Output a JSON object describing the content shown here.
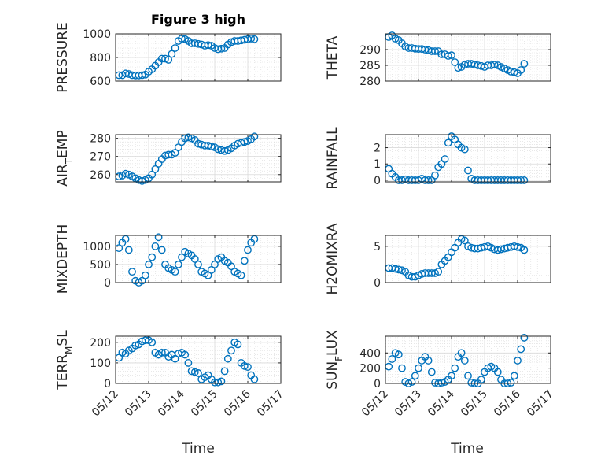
{
  "title": "Figure 3 high",
  "xlabel": "Time",
  "x_ticklabels": [
    "05/12",
    "05/13",
    "05/14",
    "05/15",
    "05/16",
    "05/17"
  ],
  "colors": {
    "marker": "#0072BD",
    "axes": "#262626",
    "grid": "#dadada"
  },
  "chart_data": [
    {
      "type": "scatter",
      "ylabel": "PRESSURE",
      "ylim": [
        600,
        1000
      ],
      "yticks": [
        600,
        800,
        1000
      ],
      "x": [
        0.1,
        0.2,
        0.3,
        0.4,
        0.5,
        0.6,
        0.7,
        0.8,
        0.9,
        1.0,
        1.1,
        1.2,
        1.3,
        1.4,
        1.5,
        1.6,
        1.7,
        1.8,
        1.9,
        2.0,
        2.1,
        2.2,
        2.3,
        2.4,
        2.5,
        2.6,
        2.7,
        2.8,
        2.9,
        3.0,
        3.1,
        3.2,
        3.3,
        3.4,
        3.5,
        3.6,
        3.7,
        3.8,
        3.9,
        4.0,
        4.1,
        4.2
      ],
      "y": [
        650,
        650,
        665,
        660,
        650,
        648,
        648,
        650,
        655,
        680,
        700,
        730,
        760,
        790,
        790,
        780,
        830,
        880,
        940,
        960,
        955,
        940,
        920,
        920,
        915,
        910,
        900,
        905,
        900,
        880,
        870,
        875,
        880,
        910,
        930,
        940,
        940,
        945,
        950,
        955,
        960,
        955
      ]
    },
    {
      "type": "scatter",
      "ylabel": "THETA",
      "ylim": [
        280,
        295
      ],
      "yticks": [
        280,
        285,
        290
      ],
      "x": [
        0.1,
        0.2,
        0.3,
        0.4,
        0.5,
        0.6,
        0.7,
        0.8,
        0.9,
        1.0,
        1.1,
        1.2,
        1.3,
        1.4,
        1.5,
        1.6,
        1.7,
        1.8,
        1.9,
        2.0,
        2.1,
        2.2,
        2.3,
        2.4,
        2.5,
        2.6,
        2.7,
        2.8,
        2.9,
        3.0,
        3.1,
        3.2,
        3.3,
        3.4,
        3.5,
        3.6,
        3.7,
        3.8,
        3.9,
        4.0,
        4.1,
        4.2
      ],
      "y": [
        294,
        294.5,
        293.5,
        293,
        292,
        291,
        290.5,
        290.5,
        290.3,
        290.2,
        290.2,
        290,
        289.8,
        289.5,
        289.5,
        289.5,
        288.5,
        288.5,
        288,
        288.2,
        286,
        284.2,
        284.5,
        285.2,
        285.5,
        285.5,
        285.2,
        285,
        284.8,
        284.5,
        285,
        285,
        285.2,
        285,
        284.5,
        284,
        283.5,
        283,
        282.8,
        282.5,
        283.5,
        285.5
      ]
    },
    {
      "type": "scatter",
      "ylabel": "AIR_TEMP",
      "ylim": [
        256,
        282
      ],
      "yticks": [
        260,
        270,
        280
      ],
      "x": [
        0.1,
        0.2,
        0.3,
        0.4,
        0.5,
        0.6,
        0.7,
        0.8,
        0.9,
        1.0,
        1.1,
        1.2,
        1.3,
        1.4,
        1.5,
        1.6,
        1.7,
        1.8,
        1.9,
        2.0,
        2.1,
        2.2,
        2.3,
        2.4,
        2.5,
        2.6,
        2.7,
        2.8,
        2.9,
        3.0,
        3.1,
        3.2,
        3.3,
        3.4,
        3.5,
        3.6,
        3.7,
        3.8,
        3.9,
        4.0,
        4.1,
        4.2
      ],
      "y": [
        259,
        259.5,
        260.5,
        260,
        259,
        258,
        257,
        256.5,
        257,
        258,
        260,
        263,
        266,
        268.5,
        270.5,
        271,
        271,
        272,
        275,
        278,
        280,
        280.5,
        280,
        279,
        277,
        276.5,
        276,
        276,
        275.5,
        275,
        274,
        273.5,
        273,
        273.5,
        274.5,
        276,
        277,
        277.5,
        278,
        278.5,
        279.5,
        281
      ]
    },
    {
      "type": "scatter",
      "ylabel": "RAINFALL",
      "ylim": [
        -0.1,
        2.8
      ],
      "yticks": [
        0,
        1,
        2
      ],
      "x": [
        0.1,
        0.2,
        0.3,
        0.4,
        0.5,
        0.6,
        0.7,
        0.8,
        0.9,
        1.0,
        1.1,
        1.2,
        1.3,
        1.4,
        1.5,
        1.6,
        1.7,
        1.8,
        1.9,
        2.0,
        2.1,
        2.2,
        2.3,
        2.4,
        2.5,
        2.6,
        2.7,
        2.8,
        2.9,
        3.0,
        3.1,
        3.2,
        3.3,
        3.4,
        3.5,
        3.6,
        3.7,
        3.8,
        3.9,
        4.0,
        4.1,
        4.2
      ],
      "y": [
        0.7,
        0.4,
        0.2,
        0,
        0,
        0.05,
        0,
        0,
        0,
        0,
        0.1,
        0,
        0,
        0,
        0.3,
        0.8,
        1.0,
        1.3,
        2.3,
        2.7,
        2.5,
        2.2,
        2.0,
        1.9,
        0.6,
        0.1,
        0,
        0,
        0,
        0,
        0,
        0,
        0,
        0,
        0,
        0,
        0,
        0,
        0,
        0,
        0,
        0
      ]
    },
    {
      "type": "scatter",
      "ylabel": "MIXDEPTH",
      "ylim": [
        0,
        1300
      ],
      "yticks": [
        0,
        500,
        1000
      ],
      "x": [
        0.1,
        0.2,
        0.3,
        0.4,
        0.5,
        0.6,
        0.7,
        0.8,
        0.9,
        1.0,
        1.1,
        1.2,
        1.3,
        1.4,
        1.5,
        1.6,
        1.7,
        1.8,
        1.9,
        2.0,
        2.1,
        2.2,
        2.3,
        2.4,
        2.5,
        2.6,
        2.7,
        2.8,
        2.9,
        3.0,
        3.1,
        3.2,
        3.3,
        3.4,
        3.5,
        3.6,
        3.7,
        3.8,
        3.9,
        4.0,
        4.1,
        4.2
      ],
      "y": [
        950,
        1100,
        1200,
        900,
        300,
        50,
        0,
        50,
        200,
        500,
        700,
        1000,
        1250,
        900,
        500,
        400,
        350,
        300,
        500,
        700,
        850,
        800,
        750,
        650,
        500,
        300,
        250,
        200,
        350,
        500,
        650,
        700,
        600,
        550,
        450,
        300,
        250,
        200,
        600,
        900,
        1100,
        1200
      ]
    },
    {
      "type": "scatter",
      "ylabel": "H2OMIXRA",
      "ylim": [
        0,
        6.5
      ],
      "yticks": [
        0,
        5
      ],
      "x": [
        0.1,
        0.2,
        0.3,
        0.4,
        0.5,
        0.6,
        0.7,
        0.8,
        0.9,
        1.0,
        1.1,
        1.2,
        1.3,
        1.4,
        1.5,
        1.6,
        1.7,
        1.8,
        1.9,
        2.0,
        2.1,
        2.2,
        2.3,
        2.4,
        2.5,
        2.6,
        2.7,
        2.8,
        2.9,
        3.0,
        3.1,
        3.2,
        3.3,
        3.4,
        3.5,
        3.6,
        3.7,
        3.8,
        3.9,
        4.0,
        4.1,
        4.2
      ],
      "y": [
        2,
        2,
        1.9,
        1.8,
        1.7,
        1.5,
        1,
        0.8,
        0.8,
        1.0,
        1.2,
        1.3,
        1.3,
        1.3,
        1.3,
        1.5,
        2.5,
        3.0,
        3.5,
        4.2,
        4.8,
        5.5,
        6.0,
        5.8,
        5.0,
        4.8,
        4.7,
        4.7,
        4.8,
        4.9,
        5.0,
        4.8,
        4.6,
        4.5,
        4.6,
        4.7,
        4.8,
        4.9,
        5.0,
        4.9,
        4.8,
        4.5
      ]
    },
    {
      "type": "scatter",
      "ylabel": "TERR_MSL",
      "ylim": [
        0,
        230
      ],
      "yticks": [
        0,
        100,
        200
      ],
      "x": [
        0.1,
        0.2,
        0.3,
        0.4,
        0.5,
        0.6,
        0.7,
        0.8,
        0.9,
        1.0,
        1.1,
        1.2,
        1.3,
        1.4,
        1.5,
        1.6,
        1.7,
        1.8,
        1.9,
        2.0,
        2.1,
        2.2,
        2.3,
        2.4,
        2.5,
        2.6,
        2.7,
        2.8,
        2.9,
        3.0,
        3.1,
        3.2,
        3.3,
        3.4,
        3.5,
        3.6,
        3.7,
        3.8,
        3.9,
        4.0,
        4.1,
        4.2
      ],
      "y": [
        125,
        150,
        145,
        160,
        170,
        185,
        190,
        205,
        210,
        210,
        200,
        150,
        140,
        150,
        150,
        130,
        140,
        120,
        145,
        150,
        140,
        100,
        60,
        55,
        50,
        20,
        30,
        40,
        20,
        5,
        5,
        10,
        60,
        120,
        160,
        200,
        190,
        100,
        85,
        80,
        40,
        20
      ]
    },
    {
      "type": "scatter",
      "ylabel": "SUN_FLUX",
      "ylim": [
        0,
        620
      ],
      "yticks": [
        0,
        200,
        400
      ],
      "x": [
        0.1,
        0.2,
        0.3,
        0.4,
        0.5,
        0.6,
        0.7,
        0.8,
        0.9,
        1.0,
        1.1,
        1.2,
        1.3,
        1.4,
        1.5,
        1.6,
        1.7,
        1.8,
        1.9,
        2.0,
        2.1,
        2.2,
        2.3,
        2.4,
        2.5,
        2.6,
        2.7,
        2.8,
        2.9,
        3.0,
        3.1,
        3.2,
        3.3,
        3.4,
        3.5,
        3.6,
        3.7,
        3.8,
        3.9,
        4.0,
        4.1,
        4.2
      ],
      "y": [
        220,
        320,
        400,
        380,
        200,
        20,
        0,
        20,
        100,
        200,
        300,
        350,
        300,
        150,
        10,
        0,
        10,
        20,
        50,
        100,
        200,
        350,
        400,
        300,
        100,
        10,
        0,
        0,
        50,
        150,
        200,
        220,
        200,
        150,
        50,
        0,
        0,
        10,
        100,
        300,
        450,
        600
      ]
    }
  ]
}
